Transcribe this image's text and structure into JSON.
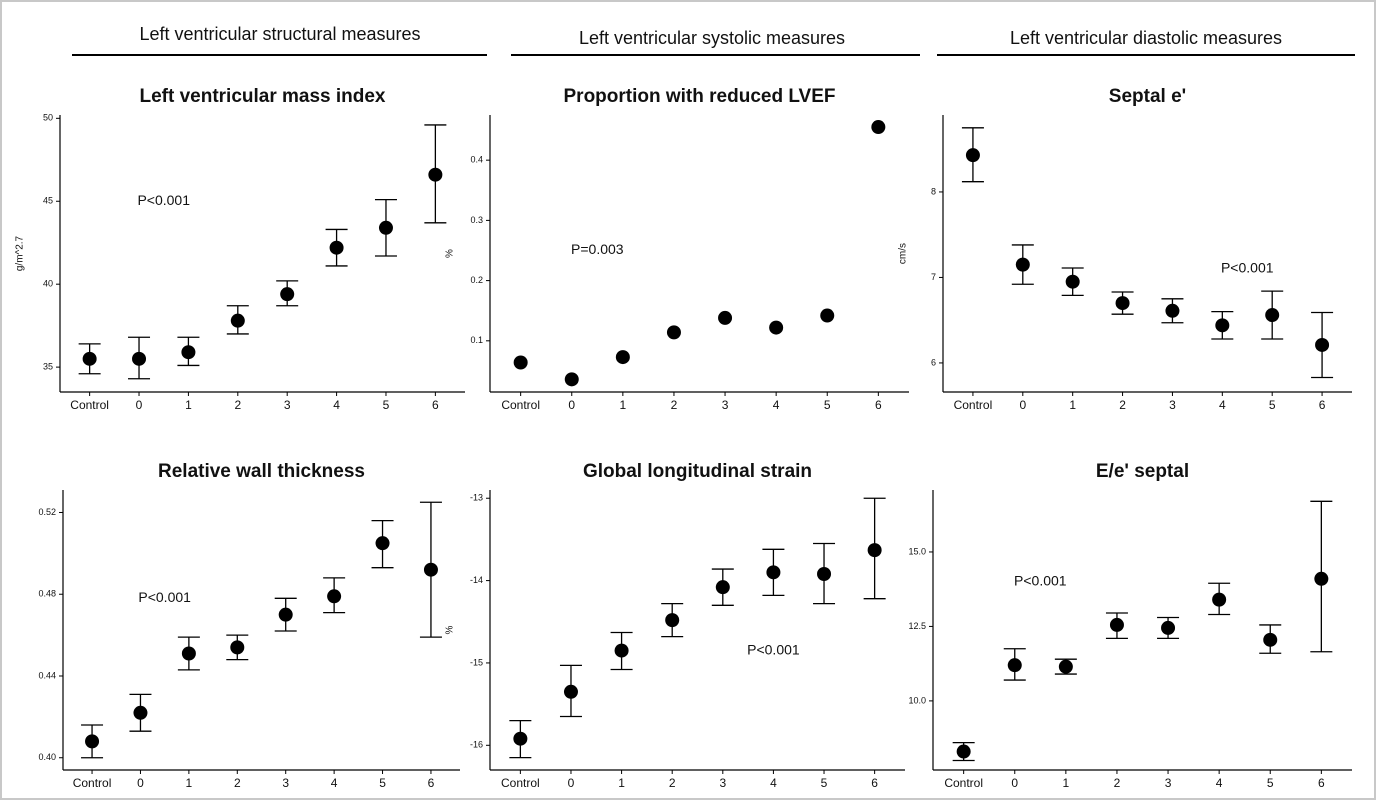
{
  "headers": [
    "Left ventricular structural measures",
    "Left ventricular systolic measures",
    "Left ventricular diastolic measures"
  ],
  "chart_data": [
    {
      "type": "errorbar",
      "title": "Left ventricular mass index",
      "ylabel": "g/m^2.7",
      "annotation": "P<0.001",
      "annotation_at": [
        1.5,
        45
      ],
      "categories": [
        "Control",
        "0",
        "1",
        "2",
        "3",
        "4",
        "5",
        "6"
      ],
      "values": [
        35.5,
        35.5,
        35.9,
        37.8,
        39.4,
        42.2,
        43.4,
        46.6
      ],
      "lower": [
        34.6,
        34.3,
        35.1,
        37.0,
        38.7,
        41.1,
        41.7,
        43.7
      ],
      "upper": [
        36.4,
        36.8,
        36.8,
        38.7,
        40.2,
        43.3,
        45.1,
        49.6
      ],
      "ylim": [
        33.5,
        50.2
      ],
      "yticks": [
        35,
        40,
        45,
        50
      ],
      "color": "#000000"
    },
    {
      "type": "point",
      "title": "Proportion with reduced LVEF",
      "ylabel": "%",
      "annotation": "P=0.003",
      "annotation_at": [
        1.5,
        0.25
      ],
      "categories": [
        "Control",
        "0",
        "1",
        "2",
        "3",
        "4",
        "5",
        "6"
      ],
      "values": [
        0.064,
        0.036,
        0.073,
        0.114,
        0.138,
        0.122,
        0.142,
        0.455
      ],
      "ylim": [
        0.015,
        0.475
      ],
      "yticks": [
        0.1,
        0.2,
        0.3,
        0.4
      ],
      "color": "#000000"
    },
    {
      "type": "errorbar",
      "title": "Septal e'",
      "ylabel": "cm/s",
      "annotation": "P<0.001",
      "annotation_at": [
        5.5,
        7.1
      ],
      "categories": [
        "Control",
        "0",
        "1",
        "2",
        "3",
        "4",
        "5",
        "6"
      ],
      "values": [
        8.43,
        7.15,
        6.95,
        6.7,
        6.61,
        6.44,
        6.56,
        6.21
      ],
      "lower": [
        8.12,
        6.92,
        6.79,
        6.57,
        6.47,
        6.28,
        6.28,
        5.83
      ],
      "upper": [
        8.75,
        7.38,
        7.11,
        6.83,
        6.75,
        6.6,
        6.84,
        6.59
      ],
      "ylim": [
        5.66,
        8.9
      ],
      "yticks": [
        6,
        7,
        8
      ],
      "color": "#000000"
    },
    {
      "type": "errorbar",
      "title": "Relative wall thickness",
      "annotation": "P<0.001",
      "annotation_at": [
        1.5,
        0.478
      ],
      "categories": [
        "Control",
        "0",
        "1",
        "2",
        "3",
        "4",
        "5",
        "6"
      ],
      "values": [
        0.408,
        0.422,
        0.451,
        0.454,
        0.47,
        0.479,
        0.505,
        0.492
      ],
      "lower": [
        0.4,
        0.413,
        0.443,
        0.448,
        0.462,
        0.471,
        0.493,
        0.459
      ],
      "upper": [
        0.416,
        0.431,
        0.459,
        0.46,
        0.478,
        0.488,
        0.516,
        0.525
      ],
      "ylim": [
        0.394,
        0.531
      ],
      "yticks": [
        {
          "value": 0.4,
          "label": "0.40"
        },
        {
          "value": 0.44,
          "label": "0.44"
        },
        {
          "value": 0.48,
          "label": "0.48"
        },
        {
          "value": 0.52,
          "label": "0.52"
        }
      ],
      "color": "#000000"
    },
    {
      "type": "errorbar",
      "title": "Global longitudinal strain",
      "ylabel": "%",
      "annotation": "P<0.001",
      "annotation_at": [
        5,
        -14.85
      ],
      "categories": [
        "Control",
        "0",
        "1",
        "2",
        "3",
        "4",
        "5",
        "6"
      ],
      "values": [
        -15.92,
        -15.35,
        -14.85,
        -14.48,
        -14.08,
        -13.9,
        -13.92,
        -13.63
      ],
      "lower": [
        -16.15,
        -15.65,
        -15.08,
        -14.68,
        -14.3,
        -14.18,
        -14.28,
        -14.22
      ],
      "upper": [
        -15.7,
        -15.03,
        -14.63,
        -14.28,
        -13.86,
        -13.62,
        -13.55,
        -13.0
      ],
      "ylim": [
        -16.3,
        -12.9
      ],
      "yticks": [
        -13,
        -14,
        -15,
        -16
      ],
      "color": "#000000"
    },
    {
      "type": "errorbar",
      "title": "E/e' septal",
      "annotation": "P<0.001",
      "annotation_at": [
        1.5,
        14.0
      ],
      "categories": [
        "Control",
        "0",
        "1",
        "2",
        "3",
        "4",
        "5",
        "6"
      ],
      "values": [
        8.3,
        11.2,
        11.15,
        12.55,
        12.45,
        13.4,
        12.05,
        14.1
      ],
      "lower": [
        8.0,
        10.7,
        10.9,
        12.1,
        12.1,
        12.9,
        11.6,
        11.65
      ],
      "upper": [
        8.6,
        11.75,
        11.4,
        12.95,
        12.8,
        13.95,
        12.55,
        16.7
      ],
      "ylim": [
        7.68,
        17.08
      ],
      "yticks": [
        {
          "value": 10,
          "label": "10.0"
        },
        {
          "value": 12.5,
          "label": "12.5"
        },
        {
          "value": 15,
          "label": "15.0"
        }
      ],
      "color": "#000000"
    }
  ]
}
